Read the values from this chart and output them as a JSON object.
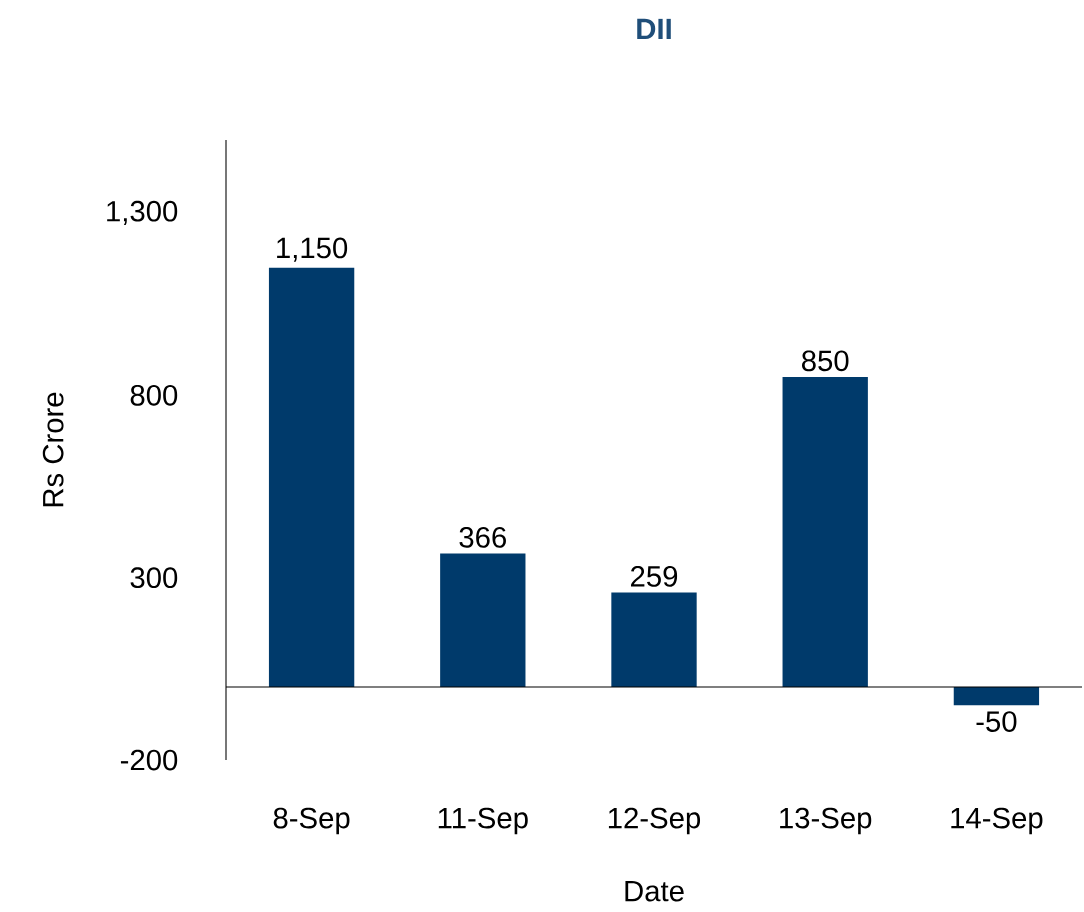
{
  "chart_data": {
    "type": "bar",
    "title": "DII",
    "xlabel": "Date",
    "ylabel": "Rs Crore",
    "categories": [
      "8-Sep",
      "11-Sep",
      "12-Sep",
      "13-Sep",
      "14-Sep"
    ],
    "values": [
      1150,
      366,
      259,
      850,
      -50
    ],
    "value_labels": [
      "1,150",
      "366",
      "259",
      "850",
      "-50"
    ],
    "color": "#003a6b",
    "ylim": [
      -200,
      1500
    ],
    "yticks": [
      -200,
      300,
      800,
      {
        "value": 1300,
        "label": "1,300"
      }
    ]
  }
}
